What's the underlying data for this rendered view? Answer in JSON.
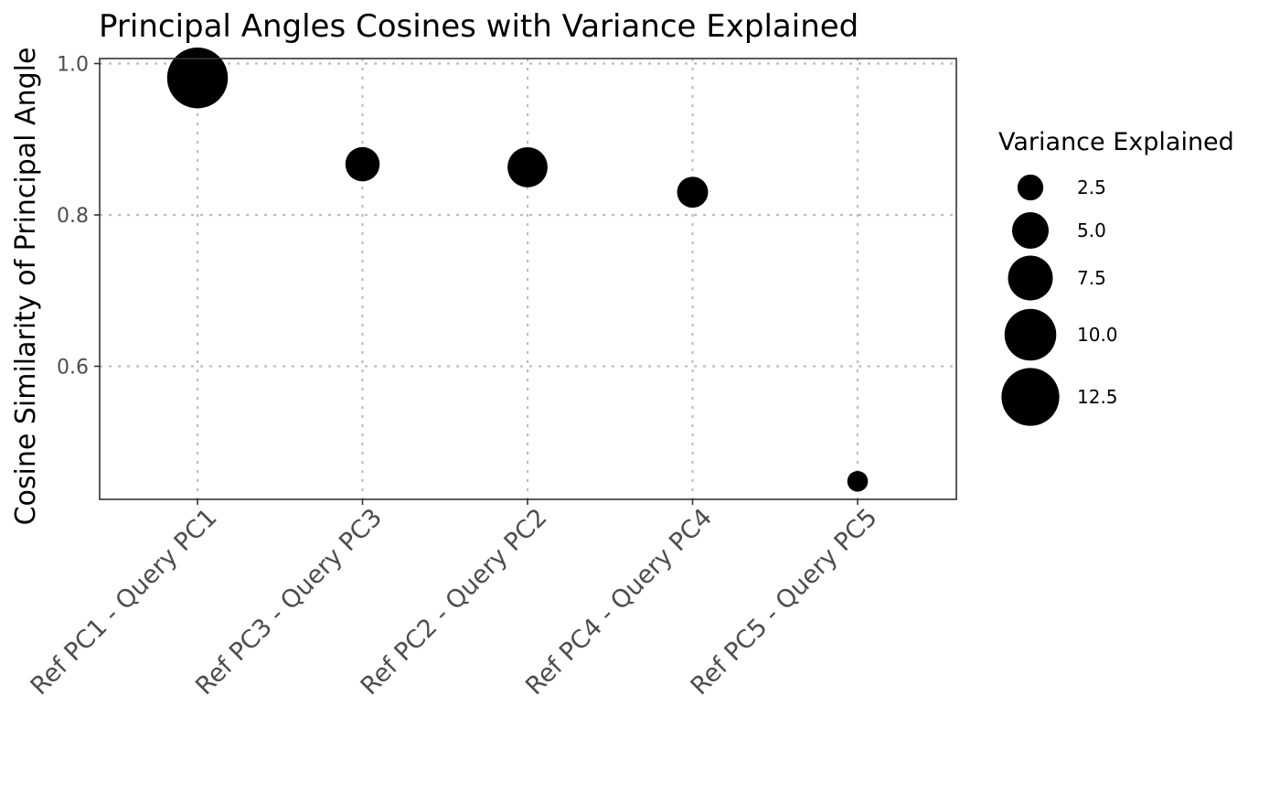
{
  "chart_data": {
    "type": "scatter",
    "title": "Principal Angles Cosines with Variance Explained",
    "xlabel": "",
    "ylabel": "Cosine Similarity of Principal Angle",
    "categories": [
      "Ref PC1 - Query PC1",
      "Ref PC3 - Query PC3",
      "Ref PC2 - Query PC2",
      "Ref PC4 - Query PC4",
      "Ref PC5 - Query PC5"
    ],
    "values": [
      0.981,
      0.867,
      0.863,
      0.83,
      0.448
    ],
    "size": [
      13.8,
      4.4,
      6.0,
      3.6,
      1.6
    ],
    "ylim": [
      0.42,
      1.005
    ],
    "yticks": [
      0.6,
      0.8,
      1.0
    ],
    "ytick_labels": [
      "0.6",
      "0.8",
      "1.0"
    ],
    "grid": true,
    "legend": {
      "title": "Variance Explained",
      "placement": "right",
      "values": [
        2.5,
        5.0,
        7.5,
        10.0,
        12.5
      ],
      "labels": [
        "2.5",
        "5.0",
        "7.5",
        "10.0",
        "12.5"
      ]
    },
    "colors": {
      "point": "#000000",
      "grid": "#bdbdbd",
      "panel_border": "#333333"
    }
  }
}
